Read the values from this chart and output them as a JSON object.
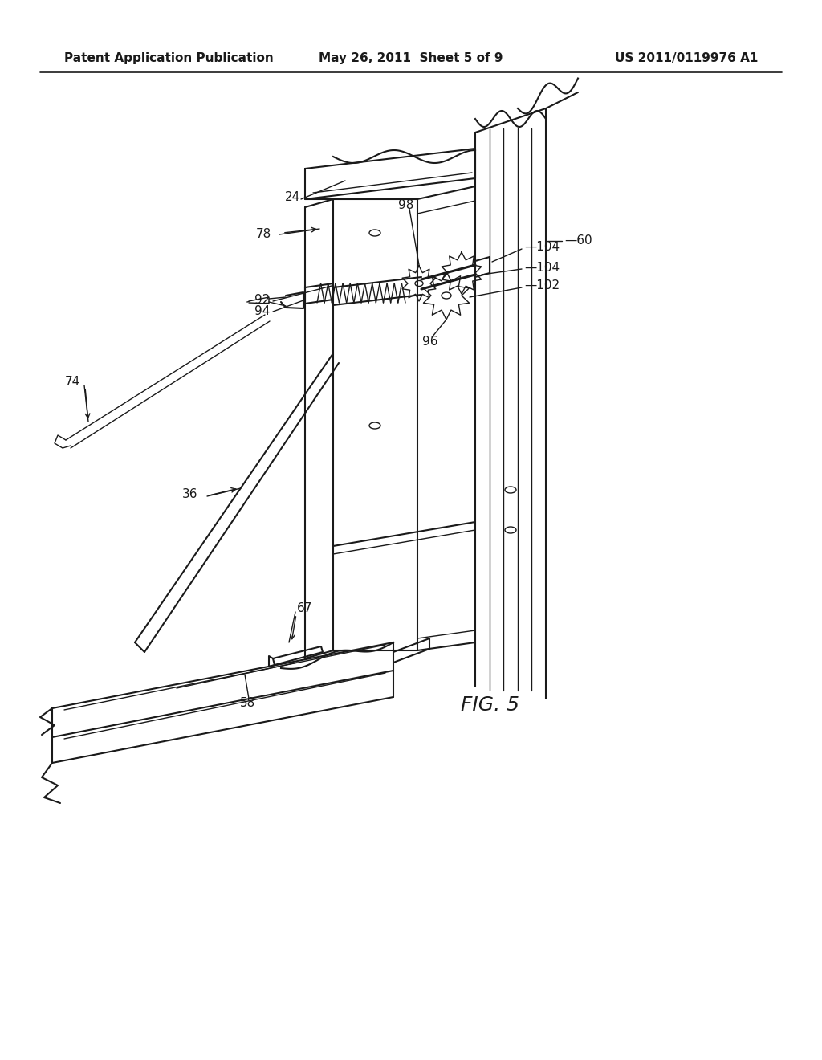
{
  "title_left": "Patent Application Publication",
  "title_center": "May 26, 2011  Sheet 5 of 9",
  "title_right": "US 2011/0119976 A1",
  "fig_label": "FIG. 5",
  "bg_color": "#ffffff",
  "line_color": "#1a1a1a"
}
